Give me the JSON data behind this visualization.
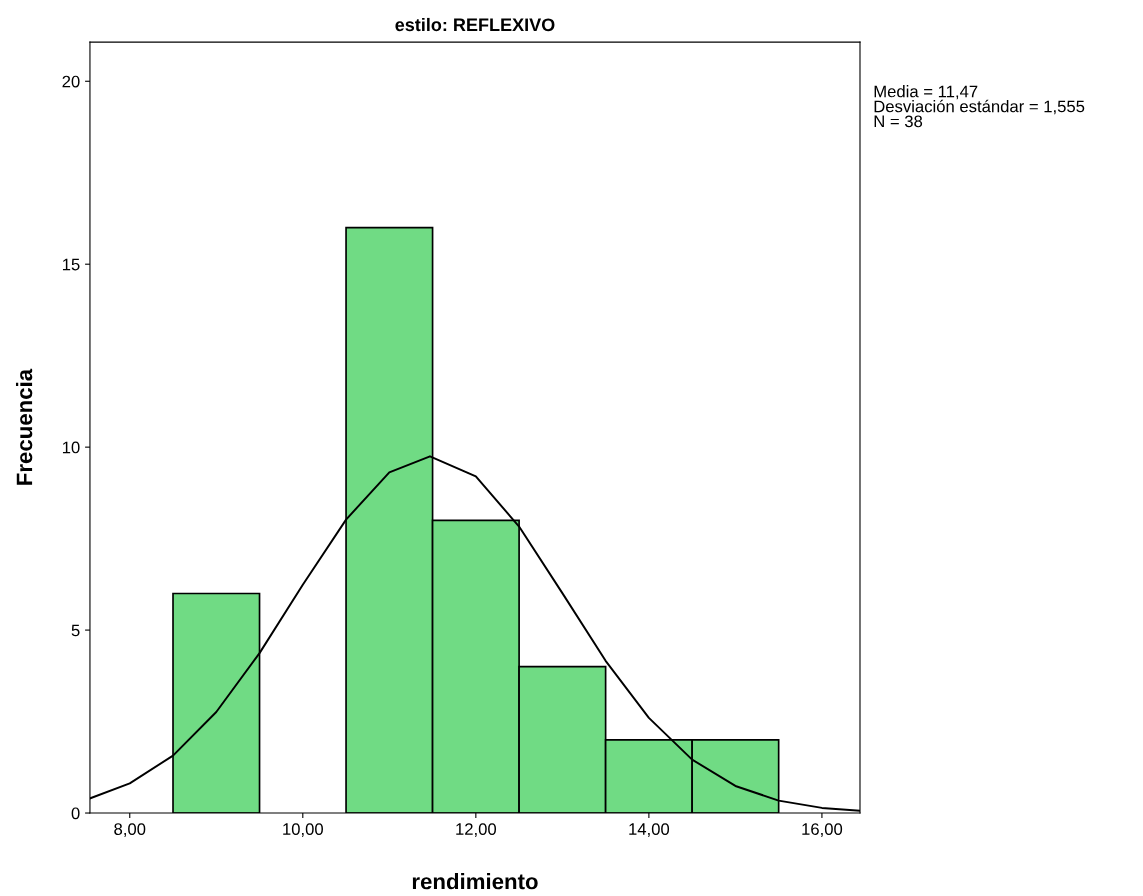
{
  "chart_data": {
    "type": "histogram",
    "title": "estilo: REFLEXIVO",
    "xlabel": "rendimiento",
    "ylabel": "Frecuencia",
    "series": [
      {
        "bins": [
          8.5,
          9.5,
          10.5,
          11.5,
          12.5,
          13.5,
          14.5,
          15.5
        ],
        "values": [
          6,
          0,
          16,
          8,
          4,
          2,
          2
        ],
        "color": "#70db84"
      },
      {
        "type": "line",
        "color": "#000000",
        "x": [
          7.54,
          8,
          8.5,
          9,
          9.5,
          10,
          10.5,
          11,
          11.47,
          12,
          12.5,
          13,
          13.5,
          14,
          14.5,
          15,
          15.5,
          16,
          16.44
        ],
        "values": [
          0.4,
          0.81,
          1.57,
          2.76,
          4.37,
          6.24,
          8.02,
          9.31,
          9.75,
          9.2,
          7.83,
          6.01,
          4.16,
          2.6,
          1.46,
          0.74,
          0.34,
          0.14,
          0.06
        ]
      }
    ],
    "xlim": [
      7.54,
      16.44
    ],
    "ylim": [
      0,
      21.07
    ],
    "xticks": [
      {
        "value": 8,
        "label": "8,00"
      },
      {
        "value": 10,
        "label": "10,00"
      },
      {
        "value": 12,
        "label": "12,00"
      },
      {
        "value": 14,
        "label": "14,00"
      },
      {
        "value": 16,
        "label": "16,00"
      }
    ],
    "yticks": [
      0,
      5,
      10,
      15,
      20
    ],
    "grid": false,
    "annotations": [
      "Media = 11,47\nDesviación estándar = 1,555\nN = 38"
    ]
  }
}
